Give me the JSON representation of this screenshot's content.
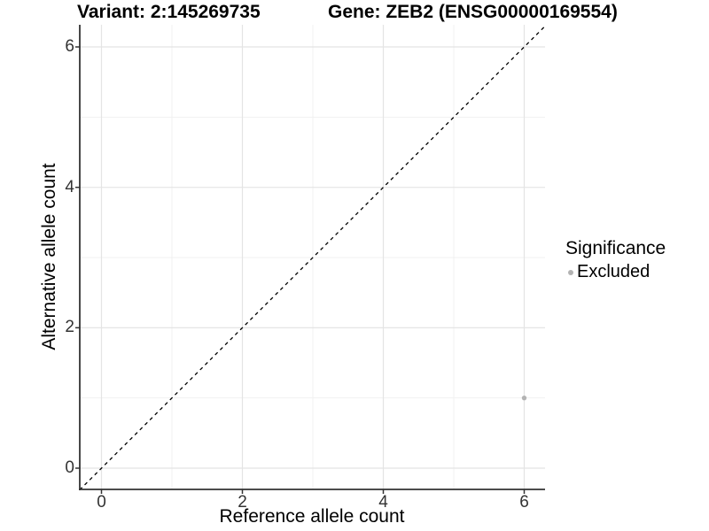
{
  "chart_data": {
    "type": "scatter",
    "title_left": "Variant: 2:145269735",
    "title_right": "Gene: ZEB2 (ENSG00000169554)",
    "xlabel": "Reference allele count",
    "ylabel": "Alternative allele count",
    "xlim": [
      -0.31,
      6.29
    ],
    "ylim": [
      -0.31,
      6.29
    ],
    "x_major_ticks": [
      0,
      2,
      4,
      6
    ],
    "y_major_ticks": [
      0,
      2,
      4,
      6
    ],
    "x_minor_gridlines": [
      1,
      3,
      5
    ],
    "y_minor_gridlines": [
      1,
      3,
      5
    ],
    "grid": true,
    "reference_line": {
      "type": "identity",
      "style": "dashed",
      "color": "#000000"
    },
    "series": [
      {
        "name": "Excluded",
        "color": "#b3b3b3",
        "points": [
          {
            "x": 6,
            "y": 1
          }
        ]
      }
    ],
    "legend": {
      "title": "Significance",
      "position": "right",
      "entries": [
        {
          "label": "Excluded",
          "color": "#b3b3b3",
          "marker": "circle"
        }
      ]
    },
    "colors": {
      "background": "#ffffff",
      "axis_line": "#333333",
      "tick_text": "#333333",
      "grid_major": "#e4e4e4",
      "grid_minor": "#f1f1f1",
      "title_text": "#000000"
    }
  }
}
